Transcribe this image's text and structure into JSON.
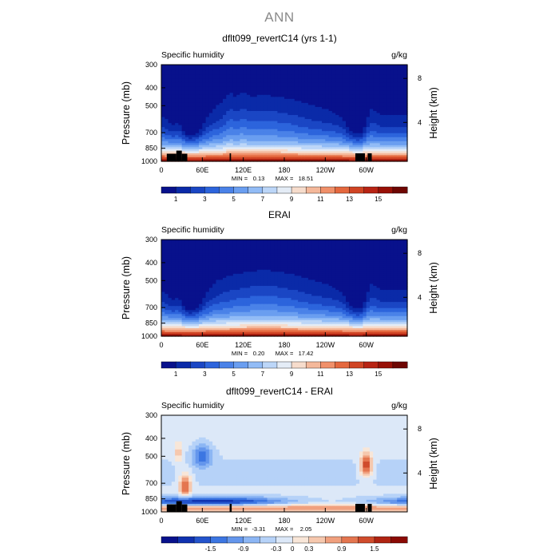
{
  "page_title": "ANN",
  "chart_data": [
    {
      "type": "heatmap",
      "title": "dflt099_revertC14 (yrs 1-1)",
      "left_label": "Specific humidity",
      "right_label": "g/kg",
      "xlabel": "",
      "ylabel": "Pressure (mb)",
      "y2label": "Height (km)",
      "x_ticks": [
        "0",
        "60E",
        "120E",
        "180",
        "120W",
        "60W"
      ],
      "y_ticks": [
        "300",
        "400",
        "500",
        "700",
        "850",
        "1000"
      ],
      "y2_ticks": [
        "8",
        "4"
      ],
      "min_label": "MIN =",
      "min_value": "0.13",
      "max_label": "MAX =",
      "max_value": "18.51",
      "colorbar_labels": [
        "1",
        "3",
        "5",
        "7",
        "9",
        "11",
        "13",
        "15"
      ],
      "colorbar_levels": [
        0,
        1,
        2,
        3,
        4,
        5,
        6,
        7,
        8,
        9,
        10,
        11,
        12,
        13,
        14,
        15,
        16
      ],
      "zlim": [
        0.13,
        18.51
      ]
    },
    {
      "type": "heatmap",
      "title": "ERAI",
      "left_label": "Specific humidity",
      "right_label": "g/kg",
      "xlabel": "",
      "ylabel": "Pressure (mb)",
      "y2label": "Height (km)",
      "x_ticks": [
        "0",
        "60E",
        "120E",
        "180",
        "120W",
        "60W"
      ],
      "y_ticks": [
        "300",
        "400",
        "500",
        "700",
        "850",
        "1000"
      ],
      "y2_ticks": [
        "8",
        "4"
      ],
      "min_label": "MIN =",
      "min_value": "0.20",
      "max_label": "MAX =",
      "max_value": "17.42",
      "colorbar_labels": [
        "1",
        "3",
        "5",
        "7",
        "9",
        "11",
        "13",
        "15"
      ],
      "colorbar_levels": [
        0,
        1,
        2,
        3,
        4,
        5,
        6,
        7,
        8,
        9,
        10,
        11,
        12,
        13,
        14,
        15,
        16
      ],
      "zlim": [
        0.2,
        17.42
      ]
    },
    {
      "type": "heatmap",
      "title": "dflt099_revertC14 - ERAI",
      "left_label": "Specific humidity",
      "right_label": "g/kg",
      "xlabel": "",
      "ylabel": "Pressure (mb)",
      "y2label": "Height (km)",
      "x_ticks": [
        "0",
        "60E",
        "120E",
        "180",
        "120W",
        "60W"
      ],
      "y_ticks": [
        "300",
        "400",
        "500",
        "700",
        "850",
        "1000"
      ],
      "y2_ticks": [
        "8",
        "4"
      ],
      "min_label": "MIN =",
      "min_value": "-3.31",
      "max_label": "MAX =",
      "max_value": "2.05",
      "colorbar_labels": [
        "-1.5",
        "-0.9",
        "-0.3",
        "0",
        "0.3",
        "0.9",
        "1.5"
      ],
      "zlim": [
        -3.31,
        2.05
      ]
    }
  ],
  "colors": {
    "abs_scale": [
      "#08118c",
      "#0a2aa8",
      "#1a46c4",
      "#2c64dc",
      "#4a82e8",
      "#6a9ef0",
      "#92bcf6",
      "#bcd6f8",
      "#e4ecf6",
      "#f6dccc",
      "#f4b89a",
      "#f0906a",
      "#e4683e",
      "#d04424",
      "#b82414",
      "#981006",
      "#6e0602"
    ],
    "diff_scale": [
      "#08118c",
      "#1032b0",
      "#2454cc",
      "#3c76e2",
      "#6496ec",
      "#8cb6f4",
      "#b6d2f8",
      "#dce8f8",
      "#f8e6d8",
      "#f6c8ae",
      "#f0a07e",
      "#e47650",
      "#d04c2c",
      "#b02412",
      "#8a0a04"
    ],
    "topography": "#000000"
  }
}
